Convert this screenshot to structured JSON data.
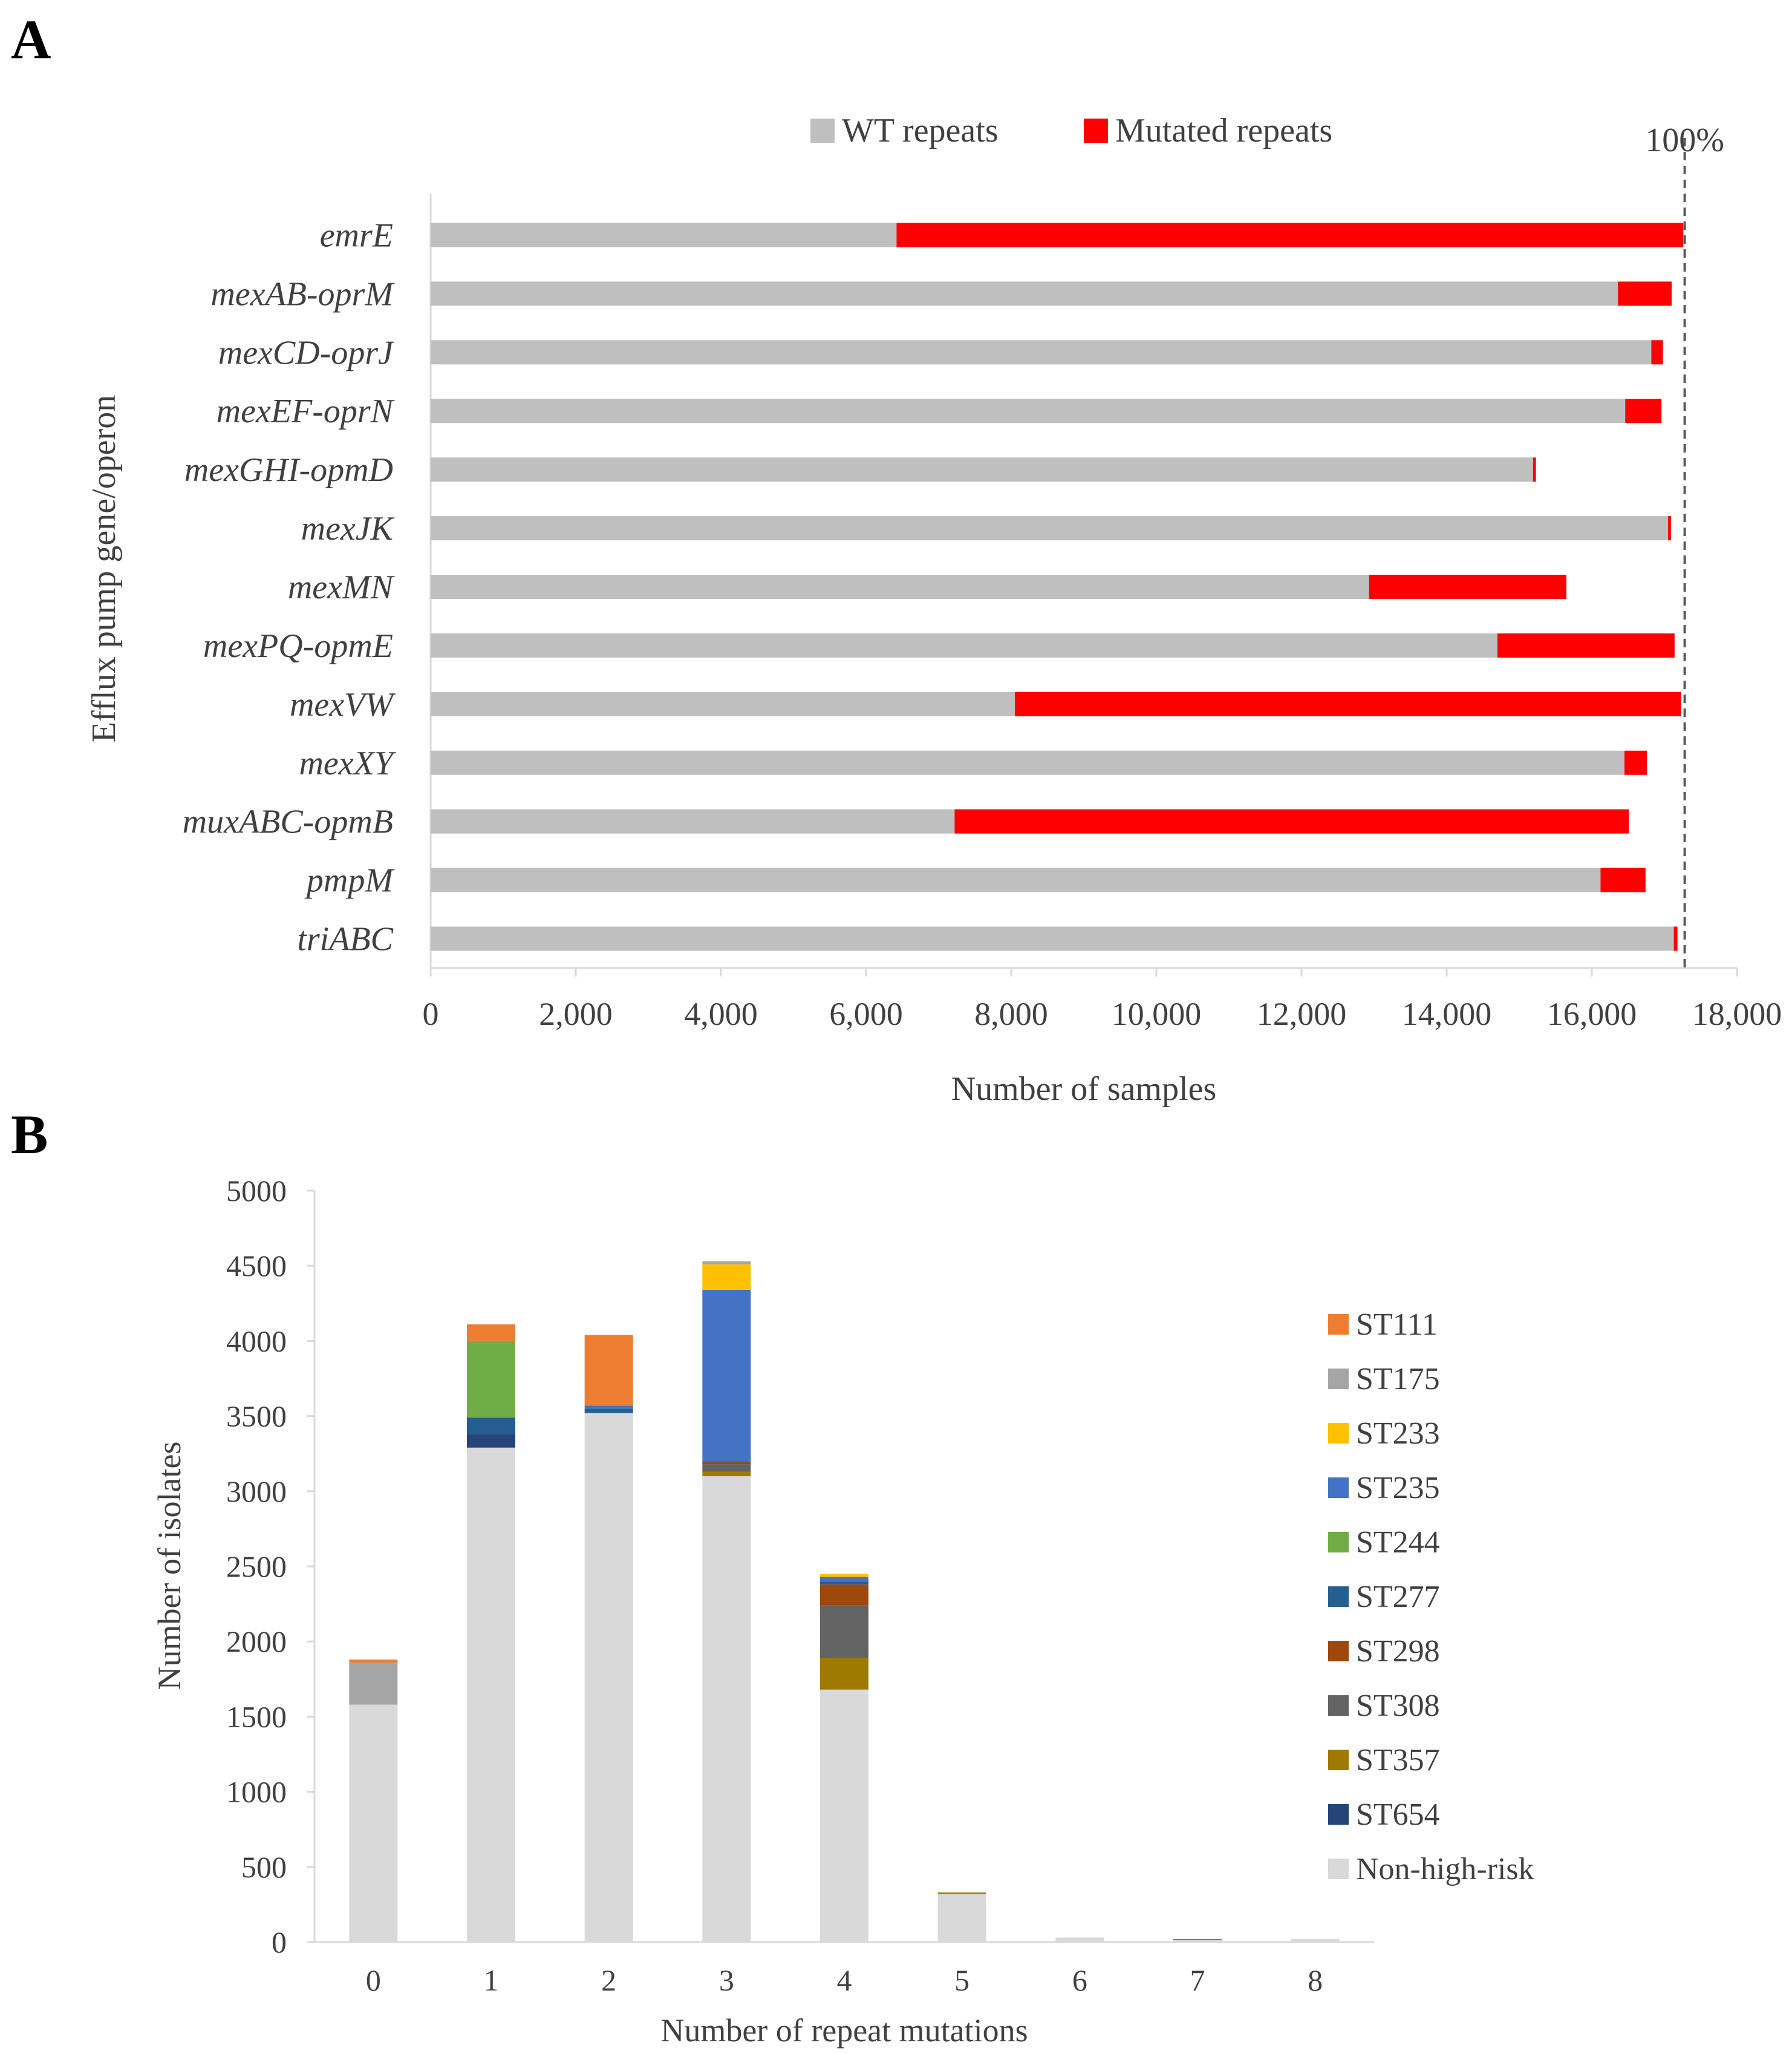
{
  "chart_data": [
    {
      "panel": "A",
      "type": "bar",
      "orientation": "horizontal",
      "stacked": true,
      "categories": [
        "emrE",
        "mexAB-oprM",
        "mexCD-oprJ",
        "mexEF-oprN",
        "mexGHI-opmD",
        "mexJK",
        "mexMN",
        "mexPQ-opmE",
        "mexVW",
        "mexXY",
        "muxABC-opmB",
        "pmpM",
        "triABC"
      ],
      "series": [
        {
          "name": "WT repeats",
          "color": "#bfbfbf",
          "values": [
            6420,
            16360,
            16820,
            16460,
            15190,
            17050,
            12930,
            14700,
            8050,
            16450,
            7220,
            16120,
            17130
          ]
        },
        {
          "name": "Mutated repeats",
          "color": "#ff0000",
          "values": [
            10840,
            740,
            160,
            500,
            40,
            40,
            2720,
            2440,
            9180,
            310,
            9290,
            620,
            50
          ]
        }
      ],
      "reference_line": {
        "value": 17280,
        "label": "100%"
      },
      "xlabel": "Number of samples",
      "ylabel": "Efflux pump gene/operon",
      "xlim": [
        0,
        18000
      ],
      "xticks": [
        0,
        2000,
        4000,
        6000,
        8000,
        10000,
        12000,
        14000,
        16000,
        18000
      ],
      "xtick_labels": [
        "0",
        "2,000",
        "4,000",
        "6,000",
        "8,000",
        "10,000",
        "12,000",
        "14,000",
        "16,000",
        "18,000"
      ],
      "legend_position": "top"
    },
    {
      "panel": "B",
      "type": "bar",
      "stacked": true,
      "categories": [
        "0",
        "1",
        "2",
        "3",
        "4",
        "5",
        "6",
        "7",
        "8"
      ],
      "series": [
        {
          "name": "Non-high-risk",
          "color": "#d9d9d9",
          "values": [
            1580,
            3290,
            3520,
            3100,
            1680,
            320,
            30,
            15,
            20
          ]
        },
        {
          "name": "ST654",
          "color": "#264478",
          "values": [
            0,
            90,
            0,
            0,
            0,
            0,
            0,
            0,
            0
          ]
        },
        {
          "name": "ST357",
          "color": "#9e7b00",
          "values": [
            0,
            0,
            0,
            30,
            210,
            10,
            0,
            0,
            0
          ]
        },
        {
          "name": "ST308",
          "color": "#636363",
          "values": [
            0,
            0,
            0,
            50,
            350,
            0,
            0,
            5,
            0
          ]
        },
        {
          "name": "ST298",
          "color": "#9e480e",
          "values": [
            0,
            0,
            0,
            20,
            140,
            0,
            0,
            0,
            0
          ]
        },
        {
          "name": "ST277",
          "color": "#255e91",
          "values": [
            0,
            110,
            30,
            0,
            20,
            0,
            0,
            0,
            0
          ]
        },
        {
          "name": "ST244",
          "color": "#70ad47",
          "values": [
            0,
            510,
            0,
            0,
            0,
            0,
            0,
            0,
            0
          ]
        },
        {
          "name": "ST235",
          "color": "#4472c4",
          "values": [
            0,
            0,
            20,
            1140,
            30,
            0,
            0,
            0,
            0
          ]
        },
        {
          "name": "ST233",
          "color": "#ffc000",
          "values": [
            0,
            0,
            0,
            170,
            20,
            0,
            0,
            0,
            0
          ]
        },
        {
          "name": "ST175",
          "color": "#a5a5a5",
          "values": [
            280,
            0,
            0,
            20,
            0,
            0,
            0,
            0,
            0
          ]
        },
        {
          "name": "ST111",
          "color": "#ed7d31",
          "values": [
            20,
            110,
            470,
            0,
            0,
            0,
            0,
            0,
            0
          ]
        }
      ],
      "legend_order": [
        "ST111",
        "ST175",
        "ST233",
        "ST235",
        "ST244",
        "ST277",
        "ST298",
        "ST308",
        "ST357",
        "ST654",
        "Non-high-risk"
      ],
      "xlabel": "Number of repeat mutations",
      "ylabel": "Number of isolates",
      "ylim": [
        0,
        5000
      ],
      "yticks": [
        0,
        500,
        1000,
        1500,
        2000,
        2500,
        3000,
        3500,
        4000,
        4500,
        5000
      ],
      "legend_position": "right"
    }
  ],
  "panel_labels": [
    "A",
    "B"
  ],
  "grid": false
}
